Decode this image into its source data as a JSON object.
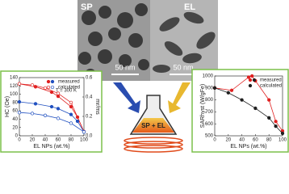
{
  "images": [
    {
      "label": "SP",
      "scale": "50 nm"
    },
    {
      "label": "EL",
      "scale": "50 nm"
    }
  ],
  "flask_label": "SP + EL",
  "chart_data": [
    {
      "type": "line",
      "annotation": "T = 300 K",
      "x_label": "EL NPs (wt.%)",
      "y_label": "HC (Oe)",
      "y2_label": "mr/ms",
      "xlim": [
        0,
        100
      ],
      "xticks": [
        0,
        20,
        40,
        60,
        80,
        100
      ],
      "ylim": [
        0,
        140
      ],
      "yticks": [
        0,
        20,
        40,
        60,
        80,
        100,
        120,
        140
      ],
      "y2lim": [
        0,
        0.6
      ],
      "y2ticks": [
        {
          "value": 0,
          "label": "0.0"
        },
        0.2,
        0.4,
        0.6
      ],
      "legend": [
        "measured",
        "calculated"
      ],
      "series": [
        {
          "color": "#e02020",
          "marker": "filled",
          "x": [
            0,
            25,
            50,
            60,
            80,
            90,
            100
          ],
          "values": [
            125,
            118,
            105,
            95,
            70,
            45,
            10
          ]
        },
        {
          "color": "#e02020",
          "marker": "open",
          "x": [
            0,
            20,
            40,
            60,
            80,
            100
          ],
          "values": [
            125,
            122,
            115,
            102,
            80,
            10
          ]
        },
        {
          "color": "#2050c0",
          "marker": "filled",
          "axis": "y2",
          "x": [
            0,
            25,
            50,
            60,
            80,
            90,
            100
          ],
          "values": [
            0.35,
            0.33,
            0.3,
            0.28,
            0.22,
            0.15,
            0.04
          ]
        },
        {
          "color": "#2050c0",
          "marker": "open",
          "axis": "y2",
          "x": [
            0,
            20,
            40,
            60,
            80,
            100
          ],
          "values": [
            0.24,
            0.23,
            0.21,
            0.18,
            0.13,
            0.04
          ]
        }
      ]
    },
    {
      "type": "line",
      "x_label": "EL NPs (wt.%)",
      "y_label": "SARhyst (W/gFe)",
      "xlim": [
        0,
        100
      ],
      "xticks": [
        0,
        20,
        40,
        60,
        80,
        100
      ],
      "ylim": [
        500,
        1000
      ],
      "yticks": [
        500,
        600,
        700,
        800,
        900,
        1000
      ],
      "legend": [
        "measured",
        "calculated"
      ],
      "series": [
        {
          "color": "#e02020",
          "marker": "filled",
          "x": [
            0,
            25,
            50,
            55,
            60,
            80,
            90,
            100
          ],
          "values": [
            900,
            880,
            990,
            1000,
            960,
            800,
            620,
            540
          ]
        },
        {
          "color": "#202020",
          "marker": "filled",
          "x": [
            0,
            20,
            40,
            60,
            80,
            90,
            100
          ],
          "values": [
            900,
            860,
            800,
            730,
            650,
            580,
            520
          ]
        }
      ]
    }
  ]
}
